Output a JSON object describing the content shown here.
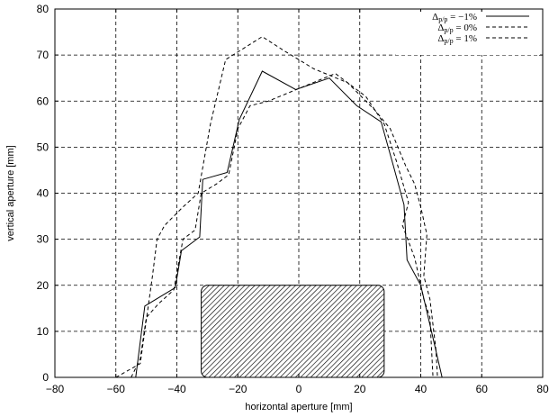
{
  "chart_data": {
    "type": "line",
    "xlabel": "horizontal aperture [mm]",
    "ylabel": "vertical aperture [mm]",
    "xlim": [
      -80,
      80
    ],
    "ylim": [
      0,
      80
    ],
    "xticks": [
      -80,
      -60,
      -40,
      -20,
      0,
      20,
      40,
      60,
      80
    ],
    "yticks": [
      0,
      10,
      20,
      30,
      40,
      50,
      60,
      70,
      80
    ],
    "grid": true,
    "legend_position": "top-right",
    "series": [
      {
        "name": "Δp/p = −1%",
        "legend_main": "Δ",
        "legend_sub": "p/p",
        "legend_rest": " = −1%",
        "style": "solid",
        "points": [
          [
            -53.5,
            0
          ],
          [
            -50.5,
            15.5
          ],
          [
            -40.5,
            19.5
          ],
          [
            -38.5,
            27.5
          ],
          [
            -32.5,
            30.5
          ],
          [
            -31.5,
            43
          ],
          [
            -23.5,
            44.5
          ],
          [
            -19.5,
            56
          ],
          [
            -12,
            66.5
          ],
          [
            -1,
            62.5
          ],
          [
            10,
            65
          ],
          [
            19,
            59
          ],
          [
            27,
            55.5
          ],
          [
            31,
            46
          ],
          [
            34.5,
            37.5
          ],
          [
            35.5,
            25.5
          ],
          [
            40,
            20
          ],
          [
            43.5,
            10
          ],
          [
            47,
            0
          ]
        ]
      },
      {
        "name": "Δp/p = 0%",
        "legend_main": "Δ",
        "legend_sub": "p/p",
        "legend_rest": " = 0%",
        "style": "dashed",
        "points": [
          [
            -55,
            0
          ],
          [
            -52,
            4
          ],
          [
            -50,
            13
          ],
          [
            -46,
            16
          ],
          [
            -41,
            19
          ],
          [
            -38,
            30
          ],
          [
            -34,
            32
          ],
          [
            -32,
            40
          ],
          [
            -27,
            42
          ],
          [
            -23,
            44
          ],
          [
            -20,
            54
          ],
          [
            -16,
            59
          ],
          [
            -10,
            60
          ],
          [
            1,
            63
          ],
          [
            12,
            66
          ],
          [
            22,
            61
          ],
          [
            28,
            55
          ],
          [
            32,
            47
          ],
          [
            36,
            38
          ],
          [
            34,
            33
          ],
          [
            38,
            26
          ],
          [
            41,
            17
          ],
          [
            43,
            13
          ],
          [
            44,
            0
          ]
        ]
      },
      {
        "name": "Δp/p = 1%",
        "legend_main": "Δ",
        "legend_sub": "p/p",
        "legend_rest": " = 1%",
        "style": "dashed",
        "points": [
          [
            -60,
            0
          ],
          [
            -52,
            3
          ],
          [
            -48,
            22
          ],
          [
            -46.5,
            30
          ],
          [
            -44,
            33
          ],
          [
            -38,
            37
          ],
          [
            -33,
            40
          ],
          [
            -29,
            55
          ],
          [
            -24,
            69
          ],
          [
            -12,
            74
          ],
          [
            -5,
            71
          ],
          [
            5,
            67
          ],
          [
            16,
            64
          ],
          [
            25,
            58
          ],
          [
            30,
            54
          ],
          [
            35,
            46
          ],
          [
            38,
            42
          ],
          [
            40,
            37
          ],
          [
            42,
            31
          ],
          [
            41,
            22
          ],
          [
            43,
            17
          ],
          [
            45,
            6
          ],
          [
            45.5,
            0
          ]
        ]
      }
    ],
    "hatched_region": {
      "x": [
        -32,
        28
      ],
      "y": [
        0,
        20
      ]
    }
  }
}
